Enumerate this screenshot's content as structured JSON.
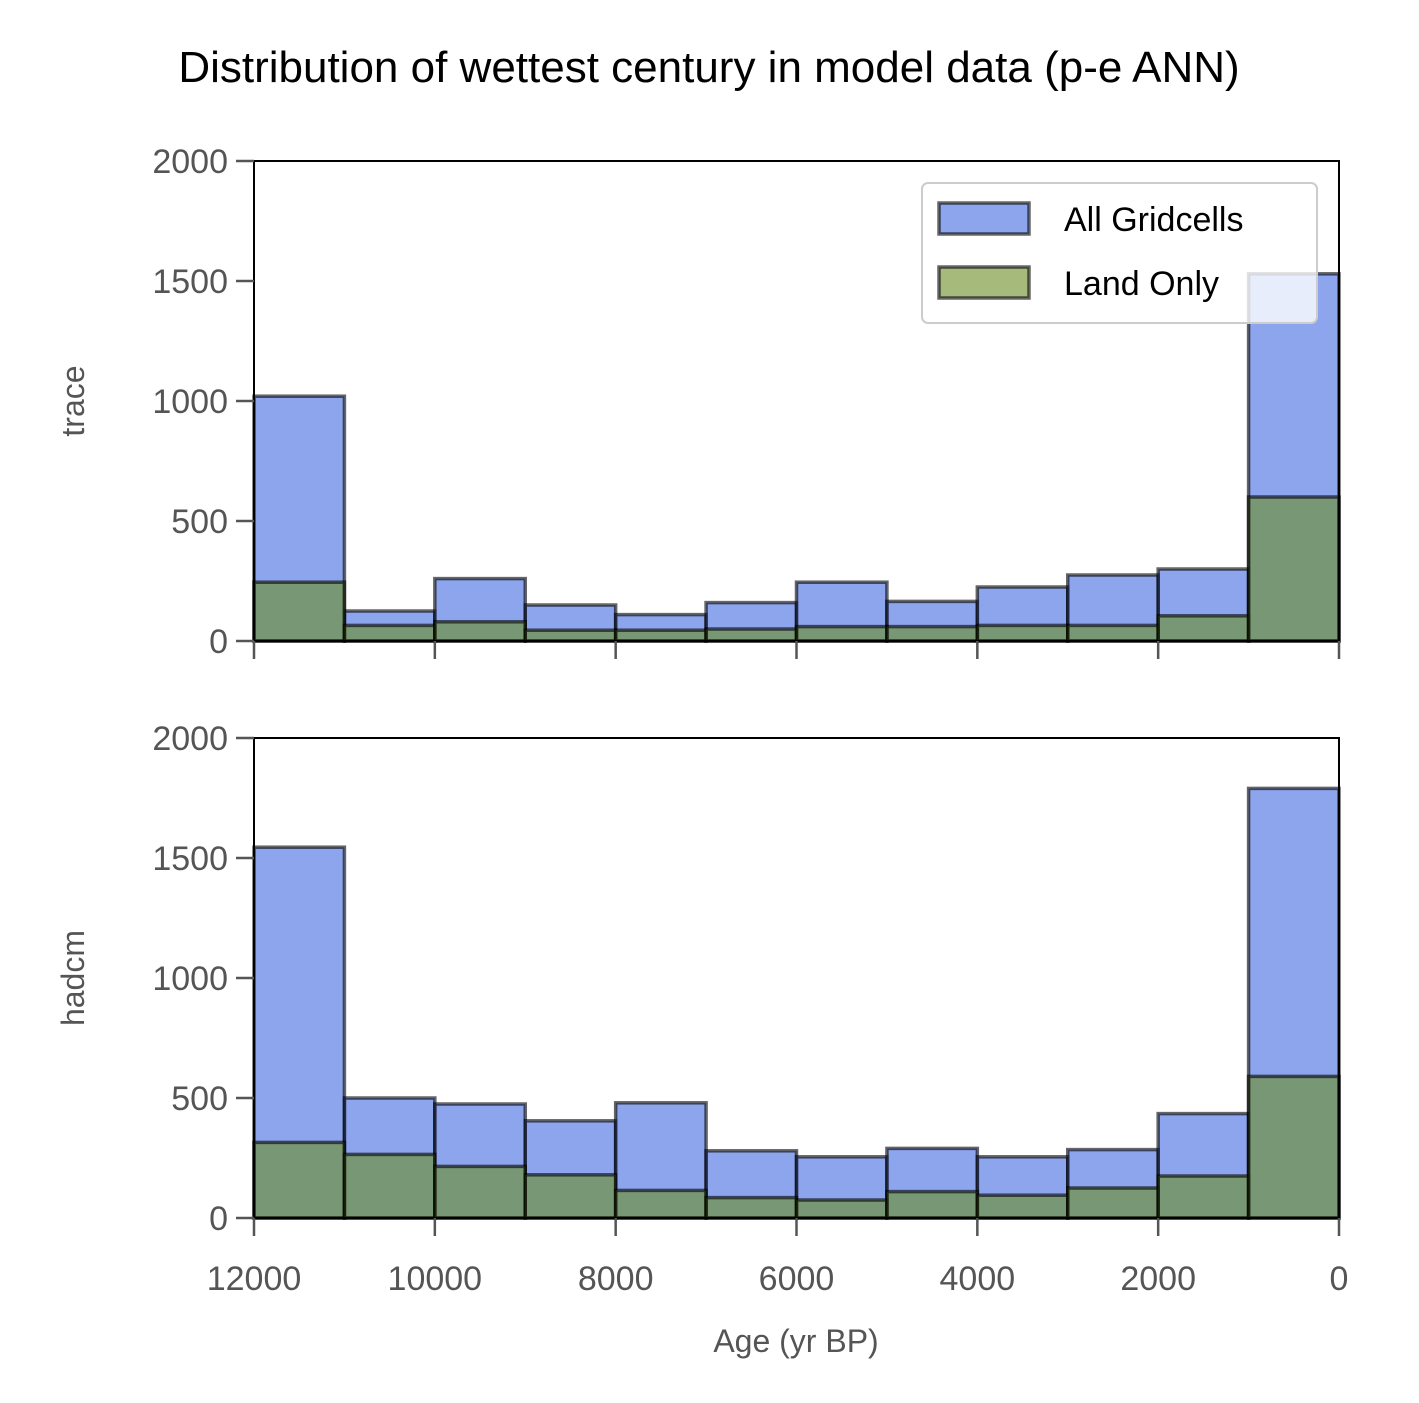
{
  "colors": {
    "all_gridcells": "#4169e1",
    "land_only": "#6b8e23",
    "bar_edge": "#000000",
    "tick_text": "#555555"
  },
  "figure": {
    "title": "Distribution of wettest century in model data (p-e ANN)",
    "xlabel": "Age (yr BP)",
    "legend_location": "upper right"
  },
  "chart_data": [
    {
      "type": "bar",
      "ylabel": "trace",
      "bin_edges": [
        12000,
        11000,
        10000,
        9000,
        8000,
        7000,
        6000,
        5000,
        4000,
        3000,
        2000,
        1000,
        0
      ],
      "xlim": [
        12000,
        0
      ],
      "x_ticks": [
        "12000",
        "10000",
        "8000",
        "6000",
        "4000",
        "2000",
        "0"
      ],
      "ylim": [
        0,
        2000
      ],
      "y_ticks": [
        "0",
        "500",
        "1000",
        "1500",
        "2000"
      ],
      "show_x_tick_labels": false,
      "legend": {
        "placement": "top-right",
        "entries": [
          "All Gridcells",
          "Land Only"
        ]
      },
      "series": [
        {
          "name": "All Gridcells",
          "values": [
            1020,
            125,
            260,
            150,
            110,
            160,
            245,
            165,
            225,
            275,
            300,
            1530
          ]
        },
        {
          "name": "Land Only",
          "values": [
            245,
            65,
            80,
            45,
            45,
            50,
            60,
            60,
            65,
            65,
            105,
            600
          ]
        }
      ]
    },
    {
      "type": "bar",
      "ylabel": "hadcm",
      "bin_edges": [
        12000,
        11000,
        10000,
        9000,
        8000,
        7000,
        6000,
        5000,
        4000,
        3000,
        2000,
        1000,
        0
      ],
      "xlim": [
        12000,
        0
      ],
      "x_ticks": [
        "12000",
        "10000",
        "8000",
        "6000",
        "4000",
        "2000",
        "0"
      ],
      "ylim": [
        0,
        2000
      ],
      "y_ticks": [
        "0",
        "500",
        "1000",
        "1500",
        "2000"
      ],
      "show_x_tick_labels": true,
      "series": [
        {
          "name": "All Gridcells",
          "values": [
            1545,
            500,
            475,
            405,
            480,
            280,
            255,
            290,
            255,
            285,
            435,
            1790
          ]
        },
        {
          "name": "Land Only",
          "values": [
            315,
            265,
            215,
            180,
            115,
            85,
            75,
            110,
            95,
            125,
            175,
            590
          ]
        }
      ]
    }
  ]
}
